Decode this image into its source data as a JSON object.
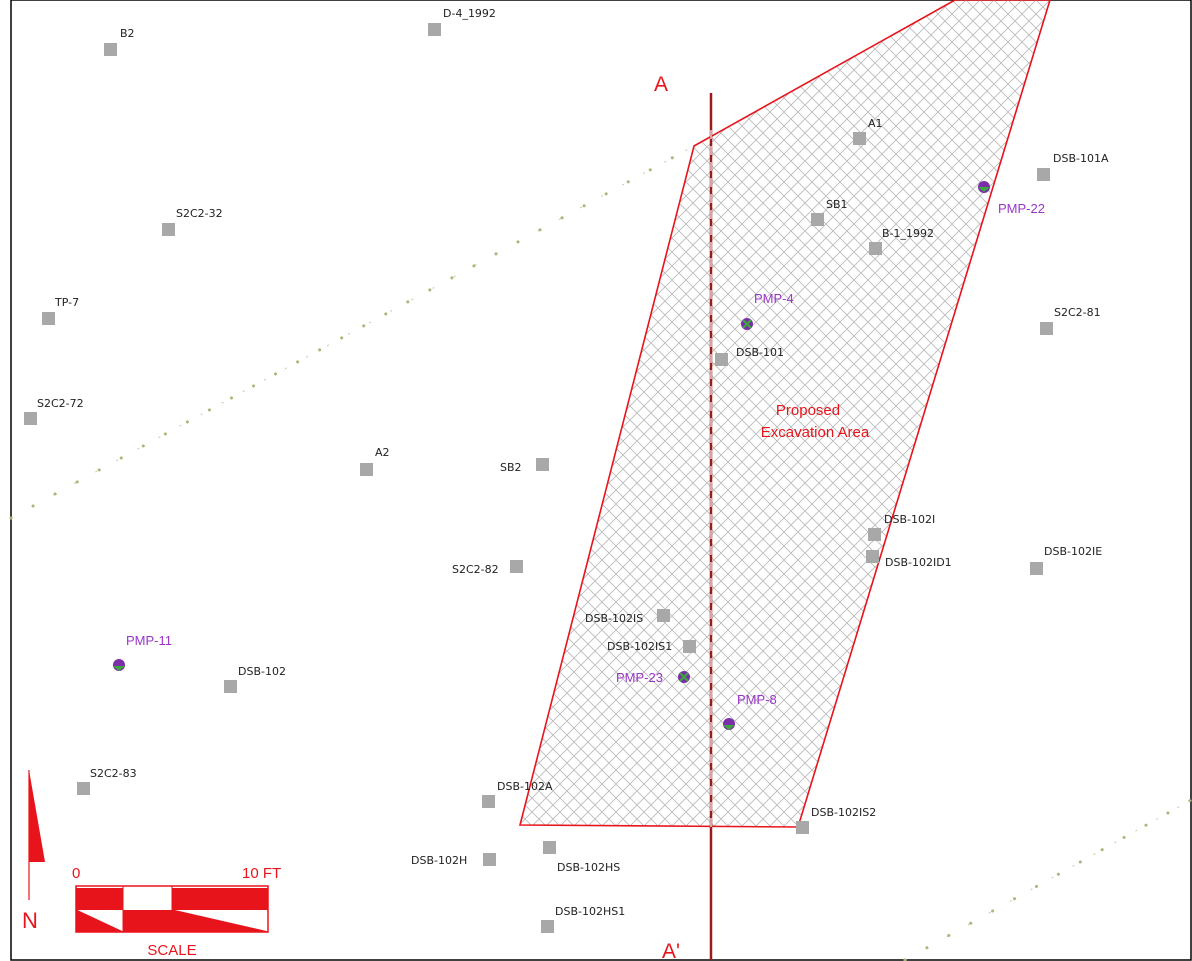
{
  "colors": {
    "accent_red": "#e8141c",
    "section_line": "#9a1b1b",
    "pmp_purple": "#9b35c8",
    "sample_gray": "#a8a8a8",
    "pipeline": "#c8c8a0"
  },
  "excavation": {
    "label_line1": "Proposed",
    "label_line2": "Excavation Area"
  },
  "section": {
    "start_label": "A",
    "end_label": "A'"
  },
  "samples": [
    {
      "label": "B2"
    },
    {
      "label": "D-4_1992"
    },
    {
      "label": "A1"
    },
    {
      "label": "DSB-101A"
    },
    {
      "label": "S2C2-32"
    },
    {
      "label": "SB1"
    },
    {
      "label": "B-1_1992"
    },
    {
      "label": "TP-7"
    },
    {
      "label": "S2C2-81"
    },
    {
      "label": "DSB-101"
    },
    {
      "label": "S2C2-72"
    },
    {
      "label": "A2"
    },
    {
      "label": "SB2"
    },
    {
      "label": "DSB-102I"
    },
    {
      "label": "DSB-102ID1"
    },
    {
      "label": "DSB-102IE"
    },
    {
      "label": "S2C2-82"
    },
    {
      "label": "DSB-102IS"
    },
    {
      "label": "DSB-102IS1"
    },
    {
      "label": "DSB-102"
    },
    {
      "label": "S2C2-83"
    },
    {
      "label": "DSB-102A"
    },
    {
      "label": "DSB-102IS2"
    },
    {
      "label": "DSB-102H"
    },
    {
      "label": "DSB-102HS"
    },
    {
      "label": "DSB-102HS1"
    }
  ],
  "wells": [
    {
      "label": "PMP-22"
    },
    {
      "label": "PMP-4"
    },
    {
      "label": "PMP-11"
    },
    {
      "label": "PMP-23"
    },
    {
      "label": "PMP-8"
    }
  ],
  "north_arrow": {
    "label": "N"
  },
  "scale_bar": {
    "start_label": "0",
    "end_label": "10 FT",
    "title": "SCALE"
  }
}
